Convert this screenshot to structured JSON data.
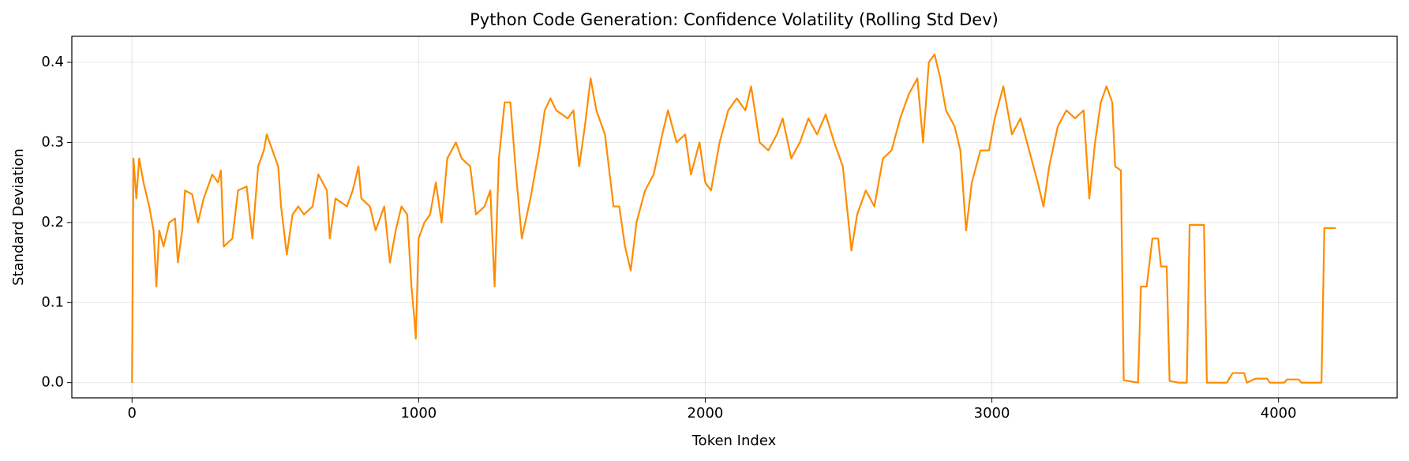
{
  "chart_data": {
    "type": "line",
    "title": "Python Code Generation: Confidence Volatility (Rolling Std Dev)",
    "x_label": "Token Index",
    "y_label": "Standard Deviation",
    "x": [
      0,
      5,
      15,
      25,
      40,
      60,
      75,
      85,
      95,
      110,
      130,
      150,
      160,
      175,
      185,
      210,
      230,
      250,
      280,
      300,
      310,
      320,
      350,
      370,
      400,
      420,
      440,
      460,
      470,
      490,
      510,
      520,
      540,
      560,
      580,
      600,
      630,
      650,
      680,
      690,
      710,
      750,
      770,
      790,
      800,
      830,
      850,
      880,
      900,
      920,
      940,
      960,
      975,
      985,
      990,
      1000,
      1020,
      1040,
      1060,
      1080,
      1100,
      1130,
      1150,
      1180,
      1200,
      1230,
      1250,
      1265,
      1280,
      1300,
      1320,
      1340,
      1360,
      1390,
      1420,
      1440,
      1460,
      1480,
      1520,
      1540,
      1560,
      1580,
      1600,
      1620,
      1650,
      1680,
      1700,
      1720,
      1740,
      1760,
      1790,
      1820,
      1850,
      1870,
      1900,
      1930,
      1950,
      1980,
      2000,
      2020,
      2050,
      2080,
      2110,
      2140,
      2160,
      2190,
      2220,
      2250,
      2270,
      2300,
      2330,
      2360,
      2390,
      2420,
      2450,
      2480,
      2500,
      2510,
      2530,
      2560,
      2590,
      2620,
      2650,
      2680,
      2710,
      2740,
      2760,
      2780,
      2800,
      2820,
      2840,
      2870,
      2890,
      2910,
      2930,
      2960,
      2990,
      3010,
      3040,
      3070,
      3100,
      3130,
      3160,
      3180,
      3200,
      3230,
      3260,
      3290,
      3320,
      3340,
      3360,
      3380,
      3400,
      3420,
      3430,
      3450,
      3460,
      3510,
      3520,
      3540,
      3560,
      3580,
      3590,
      3610,
      3620,
      3650,
      3680,
      3690,
      3740,
      3750,
      3820,
      3840,
      3880,
      3890,
      3920,
      3960,
      3970,
      4020,
      4030,
      4070,
      4080,
      4150,
      4160,
      4200
    ],
    "series": [
      {
        "name": "Rolling Std Dev",
        "color": "#ff8c00",
        "values": [
          0,
          0.28,
          0.23,
          0.28,
          0.25,
          0.22,
          0.19,
          0.12,
          0.19,
          0.17,
          0.2,
          0.205,
          0.15,
          0.19,
          0.24,
          0.235,
          0.2,
          0.23,
          0.26,
          0.25,
          0.265,
          0.17,
          0.18,
          0.24,
          0.245,
          0.18,
          0.27,
          0.29,
          0.31,
          0.29,
          0.27,
          0.22,
          0.16,
          0.21,
          0.22,
          0.21,
          0.22,
          0.26,
          0.24,
          0.18,
          0.23,
          0.22,
          0.24,
          0.27,
          0.23,
          0.22,
          0.19,
          0.22,
          0.15,
          0.19,
          0.22,
          0.21,
          0.12,
          0.08,
          0.055,
          0.18,
          0.2,
          0.21,
          0.25,
          0.2,
          0.28,
          0.3,
          0.28,
          0.27,
          0.21,
          0.22,
          0.24,
          0.12,
          0.28,
          0.35,
          0.35,
          0.26,
          0.18,
          0.23,
          0.29,
          0.34,
          0.355,
          0.34,
          0.33,
          0.34,
          0.27,
          0.32,
          0.38,
          0.34,
          0.31,
          0.22,
          0.22,
          0.17,
          0.14,
          0.2,
          0.24,
          0.26,
          0.31,
          0.34,
          0.3,
          0.31,
          0.26,
          0.3,
          0.25,
          0.24,
          0.3,
          0.34,
          0.355,
          0.34,
          0.37,
          0.3,
          0.29,
          0.31,
          0.33,
          0.28,
          0.3,
          0.33,
          0.31,
          0.335,
          0.3,
          0.27,
          0.2,
          0.165,
          0.21,
          0.24,
          0.22,
          0.28,
          0.29,
          0.33,
          0.36,
          0.38,
          0.3,
          0.4,
          0.41,
          0.38,
          0.34,
          0.32,
          0.29,
          0.19,
          0.25,
          0.29,
          0.29,
          0.33,
          0.37,
          0.31,
          0.33,
          0.29,
          0.25,
          0.22,
          0.27,
          0.32,
          0.34,
          0.33,
          0.34,
          0.23,
          0.3,
          0.35,
          0.37,
          0.35,
          0.27,
          0.265,
          0.003,
          0,
          0.12,
          0.12,
          0.18,
          0.18,
          0.145,
          0.145,
          0.002,
          0,
          0,
          0.197,
          0.197,
          0,
          0,
          0.012,
          0.012,
          0,
          0.005,
          0.005,
          0,
          0,
          0.004,
          0.004,
          0,
          0,
          0.193,
          0.193
        ]
      }
    ],
    "xlim": [
      -210,
      4414
    ],
    "ylim": [
      -0.019,
      0.4325
    ],
    "xticks": [
      0,
      1000,
      2000,
      3000,
      4000
    ],
    "yticks": [
      {
        "value": 0,
        "label": "0.0"
      },
      0.1,
      0.2,
      0.3,
      0.4
    ],
    "grid": true
  }
}
